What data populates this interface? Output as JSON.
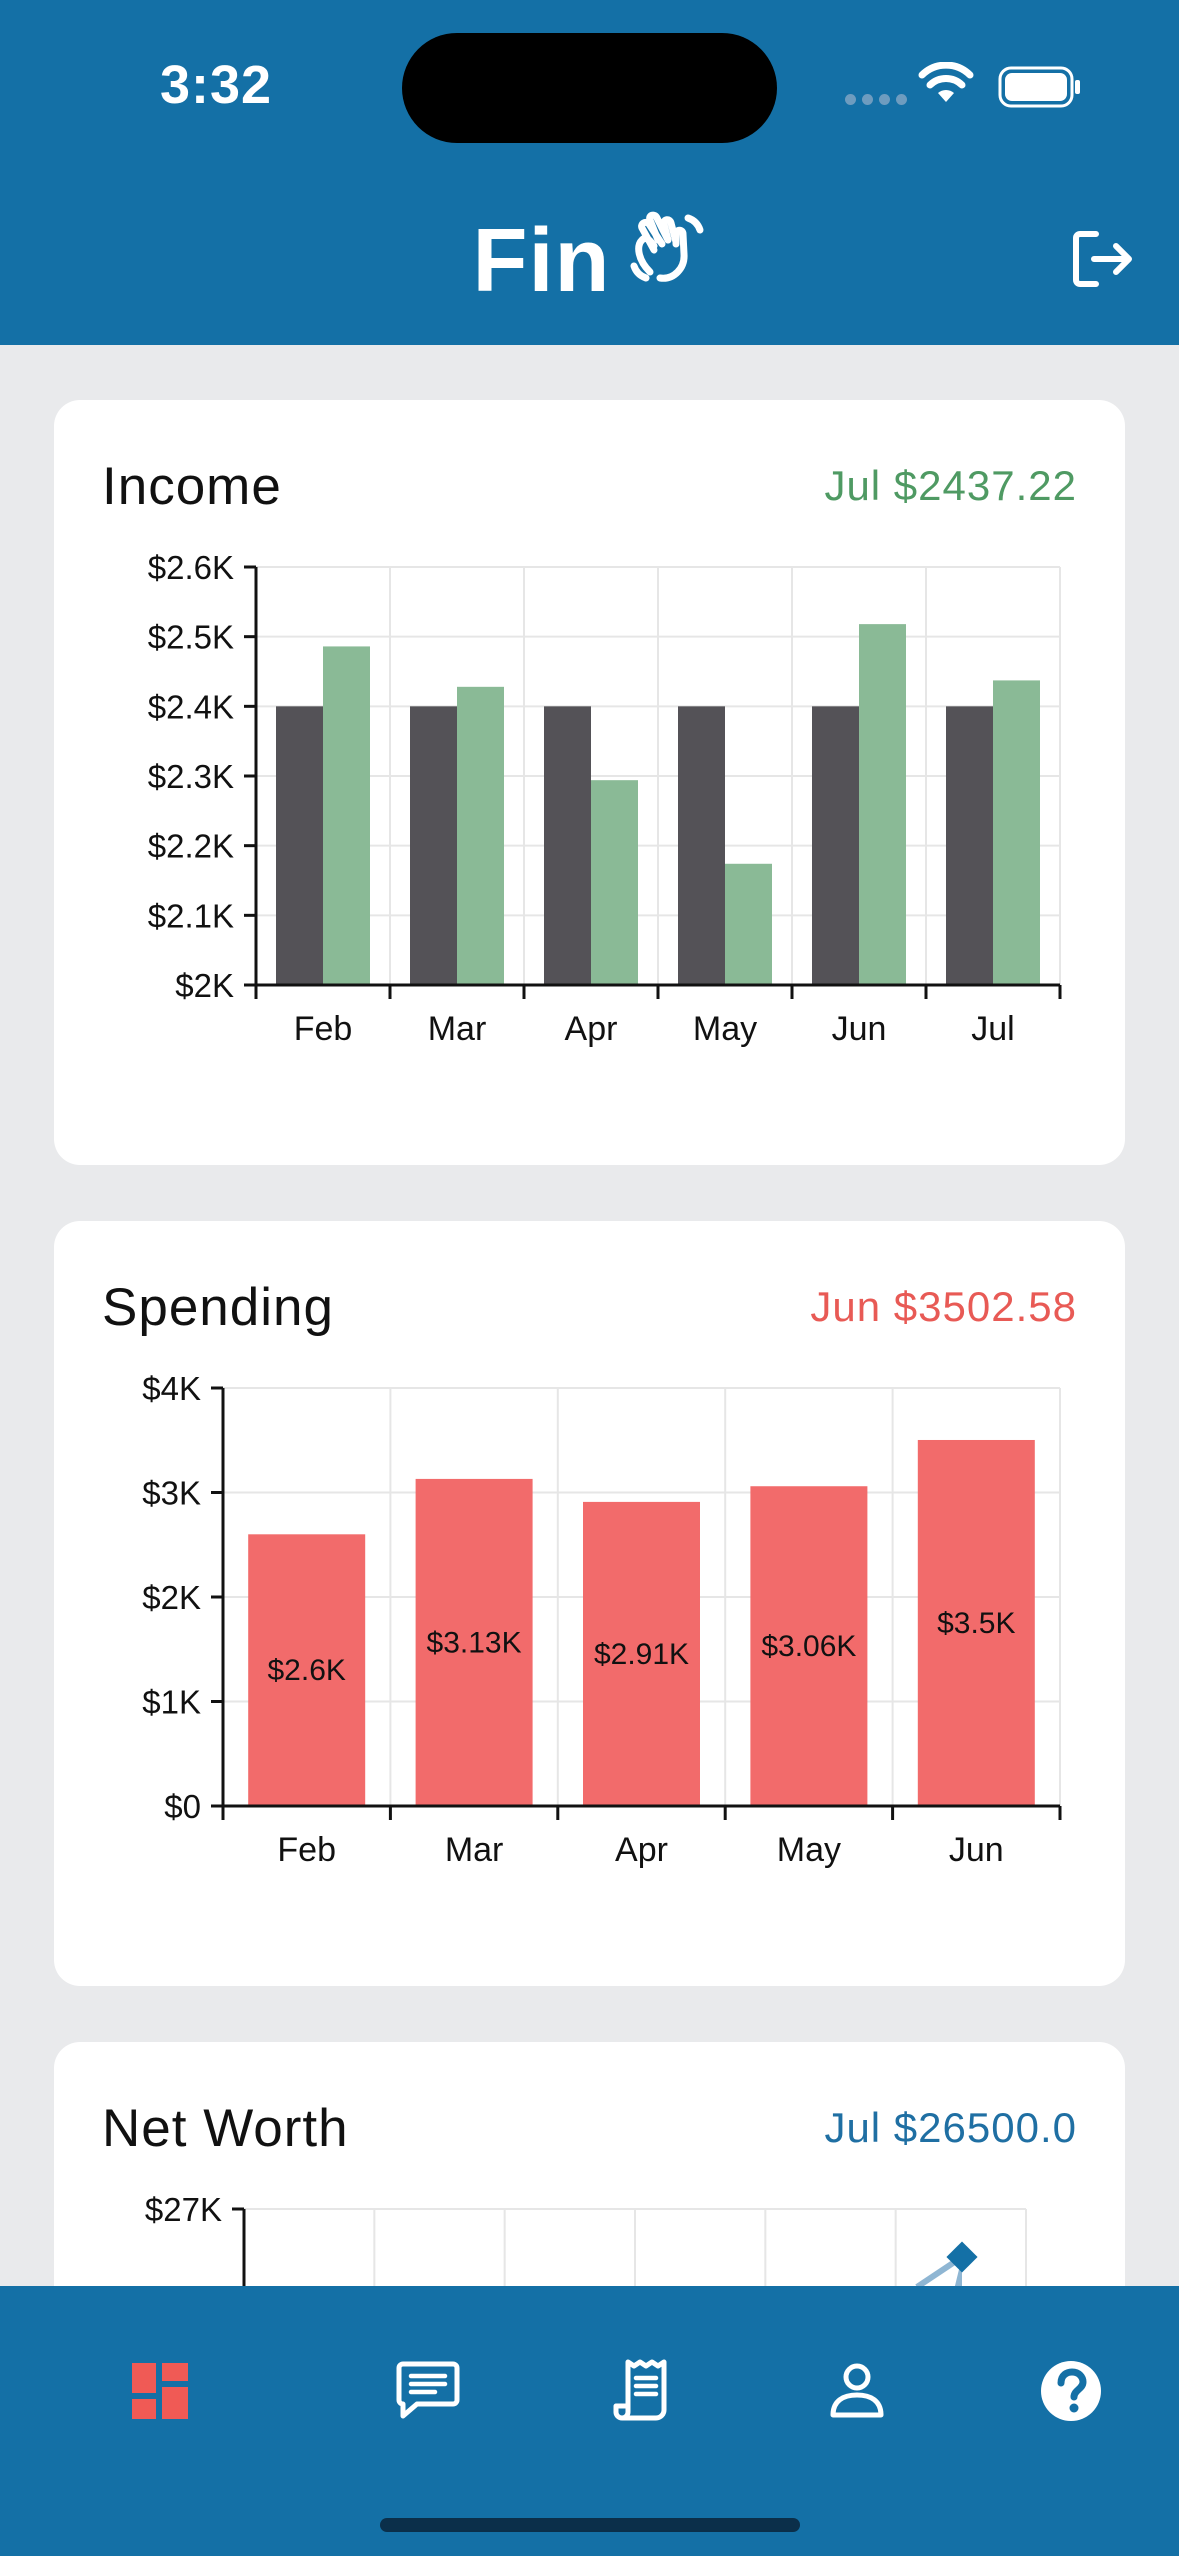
{
  "status_bar": {
    "time": "3:32"
  },
  "header": {
    "title": "Fin"
  },
  "income": {
    "title": "Income",
    "latest": "Jul $2437.22",
    "chart_data": {
      "type": "bar",
      "categories": [
        "Feb",
        "Mar",
        "Apr",
        "May",
        "Jun",
        "Jul"
      ],
      "series": [
        {
          "values": [
            2400,
            2400,
            2400,
            2400,
            2400,
            2400
          ],
          "color": "#545257"
        },
        {
          "values": [
            2486,
            2428,
            2294,
            2174,
            2518,
            2437.22
          ],
          "color": "#8aba96"
        }
      ],
      "yticks": [
        "$2K",
        "$2.1K",
        "$2.2K",
        "$2.3K",
        "$2.4K",
        "$2.5K",
        "$2.6K"
      ],
      "ylim": [
        2000,
        2600
      ],
      "grid": true
    }
  },
  "spending": {
    "title": "Spending",
    "latest": "Jun $3502.58",
    "chart_data": {
      "type": "bar",
      "categories": [
        "Feb",
        "Mar",
        "Apr",
        "May",
        "Jun"
      ],
      "values": [
        2600,
        3130,
        2910,
        3060,
        3502.58
      ],
      "data_labels": [
        "$2.6K",
        "$3.13K",
        "$2.91K",
        "$3.06K",
        "$3.5K"
      ],
      "yticks": [
        "$0",
        "$1K",
        "$2K",
        "$3K",
        "$4K"
      ],
      "ylim": [
        0,
        4000
      ],
      "color": "#f26b6b",
      "grid": true
    }
  },
  "net_worth": {
    "title": "Net Worth",
    "latest": "Jul $26500.0",
    "chart_data": {
      "type": "area",
      "ytick_top": "$27K",
      "last_value": 26500.0,
      "color": "#1470a6"
    }
  },
  "colors": {
    "primary": "#1470a6",
    "income_accent": "#4f9a63",
    "spending_accent": "#e85a55",
    "active_tab": "#f05a55"
  },
  "tab_bar": {
    "items": [
      {
        "icon": "dashboard-icon",
        "active": true
      },
      {
        "icon": "chat-icon",
        "active": false
      },
      {
        "icon": "receipt-icon",
        "active": false
      },
      {
        "icon": "person-icon",
        "active": false
      },
      {
        "icon": "help-icon",
        "active": false
      }
    ]
  }
}
